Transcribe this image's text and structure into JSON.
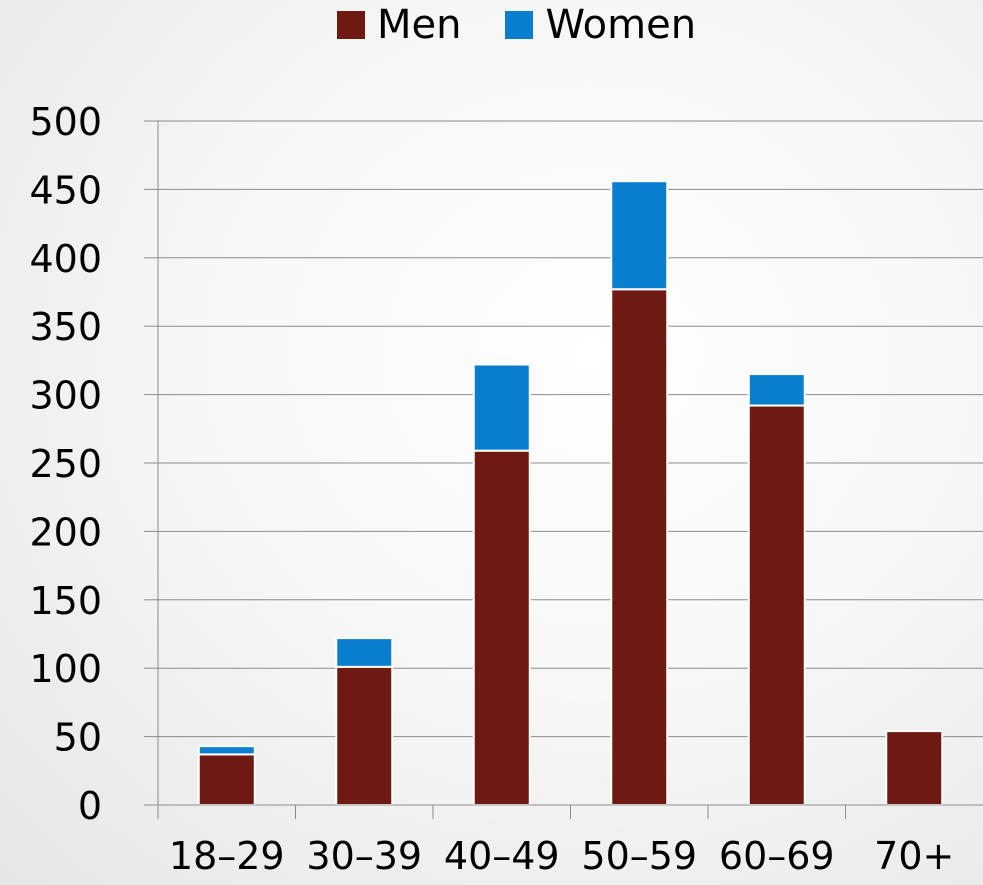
{
  "chart_data": {
    "type": "bar",
    "stacked": true,
    "categories": [
      "18–29",
      "30–39",
      "40–49",
      "50–59",
      "60–69",
      "70+"
    ],
    "series": [
      {
        "name": "Men",
        "color": "#6e1a12",
        "values": [
          37,
          101,
          259,
          377,
          292,
          54
        ]
      },
      {
        "name": "Women",
        "color": "#0a7fcf",
        "values": [
          6,
          21,
          63,
          79,
          23,
          0
        ]
      }
    ],
    "y_ticks": [
      "0",
      "50",
      "100",
      "150",
      "200",
      "250",
      "300",
      "350",
      "400",
      "450",
      "500"
    ],
    "ylim": [
      0,
      500
    ],
    "grid": true,
    "legend_position": "top"
  }
}
